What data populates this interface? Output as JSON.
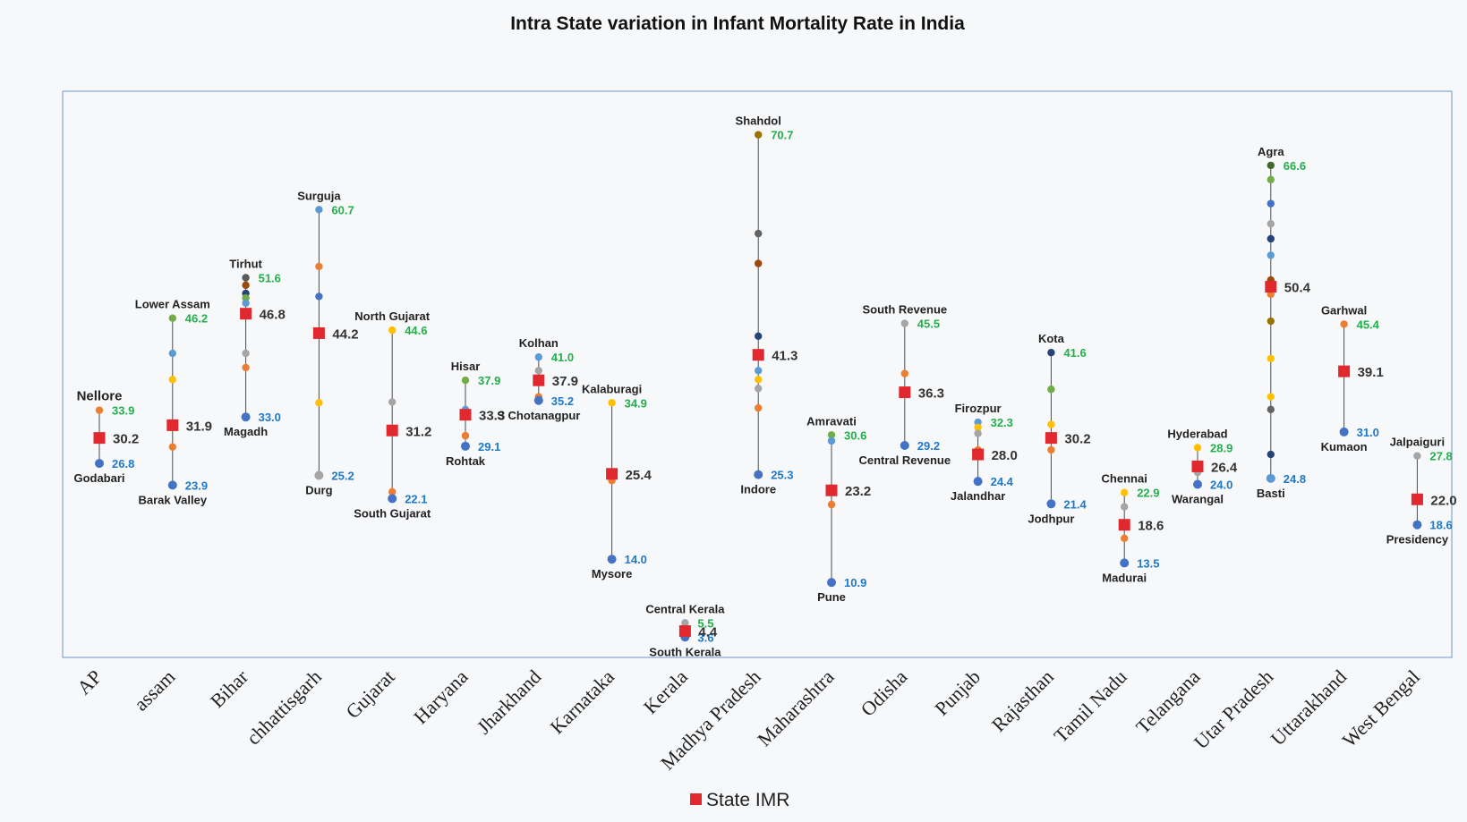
{
  "chart_data": {
    "type": "scatter",
    "title": "Intra State variation in Infant Mortality Rate in India",
    "legend": [
      {
        "name": "State IMR",
        "color": "#e2282f",
        "marker": "square",
        "placement": "bottom-center"
      }
    ],
    "ylim": [
      0,
      80
    ],
    "grid": false,
    "categories": [
      "AP",
      "assam",
      "Bihar",
      "chhattisgarh",
      "Gujarat",
      "Haryana",
      "Jharkhand",
      "Karnataka",
      "Kerala",
      "Madhya Pradesh",
      "Maharashtra",
      "Odisha",
      "Punjab",
      "Rajasthan",
      "Tamil Nadu",
      "Telangana",
      "Utar Pradesh",
      "Uttarakhand",
      "West Bengal"
    ],
    "states": [
      {
        "category": "AP",
        "state_imr": 30.2,
        "max": 33.9,
        "min": 26.8,
        "max_region": "Nellore",
        "min_region": "Godabari",
        "regions": [
          {
            "v": 33.9,
            "c": "#ed7d31"
          },
          {
            "v": 26.8,
            "c": "#4472c4"
          }
        ]
      },
      {
        "category": "assam",
        "state_imr": 31.9,
        "max": 46.2,
        "min": 23.9,
        "max_region": "Lower Assam",
        "min_region": "Barak Valley",
        "regions": [
          {
            "v": 46.2,
            "c": "#70ad47"
          },
          {
            "v": 41.5,
            "c": "#5b9bd5"
          },
          {
            "v": 38.0,
            "c": "#ffc000"
          },
          {
            "v": 29.0,
            "c": "#ed7d31"
          },
          {
            "v": 23.9,
            "c": "#4472c4"
          }
        ]
      },
      {
        "category": "Bihar",
        "state_imr": 46.8,
        "max": 51.6,
        "min": 33.0,
        "max_region": "Tirhut",
        "min_region": "Magadh",
        "regions": [
          {
            "v": 51.6,
            "c": "#5a5a5a"
          },
          {
            "v": 50.6,
            "c": "#9e480e"
          },
          {
            "v": 49.5,
            "c": "#264478"
          },
          {
            "v": 48.9,
            "c": "#70ad47"
          },
          {
            "v": 48.2,
            "c": "#5b9bd5"
          },
          {
            "v": 41.5,
            "c": "#a5a5a5"
          },
          {
            "v": 39.6,
            "c": "#ed7d31"
          },
          {
            "v": 33.0,
            "c": "#4472c4"
          }
        ]
      },
      {
        "category": "chhattisgarh",
        "state_imr": 44.2,
        "max": 60.7,
        "min": 25.2,
        "max_region": "Surguja",
        "min_region": "Durg",
        "regions": [
          {
            "v": 60.7,
            "c": "#5b9bd5"
          },
          {
            "v": 53.1,
            "c": "#ed7d31"
          },
          {
            "v": 49.1,
            "c": "#4472c4"
          },
          {
            "v": 34.9,
            "c": "#ffc000"
          },
          {
            "v": 25.2,
            "c": "#a5a5a5"
          }
        ]
      },
      {
        "category": "Gujarat",
        "state_imr": 31.2,
        "max": 44.6,
        "min": 22.1,
        "max_region": "North Gujarat",
        "min_region": "South Gujarat",
        "regions": [
          {
            "v": 44.6,
            "c": "#ffc000"
          },
          {
            "v": 35.0,
            "c": "#a5a5a5"
          },
          {
            "v": 23.0,
            "c": "#ed7d31"
          },
          {
            "v": 22.1,
            "c": "#4472c4"
          }
        ]
      },
      {
        "category": "Haryana",
        "state_imr": 33.3,
        "max": 37.9,
        "min": 29.1,
        "max_region": "Hisar",
        "min_region": "Rohtak",
        "regions": [
          {
            "v": 37.9,
            "c": "#70ad47"
          },
          {
            "v": 34.0,
            "c": "#5b9bd5"
          },
          {
            "v": 30.5,
            "c": "#ed7d31"
          },
          {
            "v": 29.1,
            "c": "#4472c4"
          }
        ]
      },
      {
        "category": "Jharkhand",
        "state_imr": 37.9,
        "max": 41.0,
        "min": 35.2,
        "max_region": "Kolhan",
        "min_region": "S Chotanagpur",
        "regions": [
          {
            "v": 41.0,
            "c": "#5b9bd5"
          },
          {
            "v": 39.2,
            "c": "#a5a5a5"
          },
          {
            "v": 35.7,
            "c": "#ed7d31"
          },
          {
            "v": 35.2,
            "c": "#4472c4"
          }
        ]
      },
      {
        "category": "Karnataka",
        "state_imr": 25.4,
        "max": 34.9,
        "min": 14.0,
        "max_region": "Kalaburagi",
        "min_region": "Mysore",
        "regions": [
          {
            "v": 34.9,
            "c": "#ffc000"
          },
          {
            "v": 24.5,
            "c": "#ed7d31"
          },
          {
            "v": 14.0,
            "c": "#4472c4"
          }
        ]
      },
      {
        "category": "Kerala",
        "state_imr": 4.4,
        "max": 5.5,
        "min": 3.6,
        "max_region": "Central Kerala",
        "min_region": "South Kerala",
        "regions": [
          {
            "v": 5.5,
            "c": "#a5a5a5"
          },
          {
            "v": 3.6,
            "c": "#4472c4"
          }
        ]
      },
      {
        "category": "Madhya Pradesh",
        "state_imr": 41.3,
        "max": 70.7,
        "min": 25.3,
        "max_region": "Shahdol",
        "min_region": "Indore",
        "regions": [
          {
            "v": 70.7,
            "c": "#997300"
          },
          {
            "v": 57.5,
            "c": "#636363"
          },
          {
            "v": 53.5,
            "c": "#9e480e"
          },
          {
            "v": 43.8,
            "c": "#264478"
          },
          {
            "v": 39.2,
            "c": "#5b9bd5"
          },
          {
            "v": 38.0,
            "c": "#ffc000"
          },
          {
            "v": 36.8,
            "c": "#a5a5a5"
          },
          {
            "v": 34.2,
            "c": "#ed7d31"
          },
          {
            "v": 25.3,
            "c": "#4472c4"
          }
        ]
      },
      {
        "category": "Maharashtra",
        "state_imr": 23.2,
        "max": 30.6,
        "min": 10.9,
        "max_region": "Amravati",
        "min_region": "Pune",
        "regions": [
          {
            "v": 30.6,
            "c": "#70ad47"
          },
          {
            "v": 29.8,
            "c": "#5b9bd5"
          },
          {
            "v": 21.3,
            "c": "#ed7d31"
          },
          {
            "v": 10.9,
            "c": "#4472c4"
          }
        ]
      },
      {
        "category": "Odisha",
        "state_imr": 36.3,
        "max": 45.5,
        "min": 29.2,
        "max_region": "South Revenue",
        "min_region": "Central Revenue",
        "regions": [
          {
            "v": 45.5,
            "c": "#a5a5a5"
          },
          {
            "v": 38.8,
            "c": "#ed7d31"
          },
          {
            "v": 29.2,
            "c": "#4472c4"
          }
        ]
      },
      {
        "category": "Punjab",
        "state_imr": 28.0,
        "max": 32.3,
        "min": 24.4,
        "max_region": "Firozpur",
        "min_region": "Jalandhar",
        "regions": [
          {
            "v": 32.3,
            "c": "#5b9bd5"
          },
          {
            "v": 31.6,
            "c": "#ffc000"
          },
          {
            "v": 30.8,
            "c": "#a5a5a5"
          },
          {
            "v": 28.6,
            "c": "#ed7d31"
          },
          {
            "v": 24.4,
            "c": "#4472c4"
          }
        ]
      },
      {
        "category": "Rajasthan",
        "state_imr": 30.2,
        "max": 41.6,
        "min": 21.4,
        "max_region": "Kota",
        "min_region": "Jodhpur",
        "regions": [
          {
            "v": 41.6,
            "c": "#264478"
          },
          {
            "v": 36.7,
            "c": "#70ad47"
          },
          {
            "v": 32.0,
            "c": "#ffc000"
          },
          {
            "v": 28.6,
            "c": "#ed7d31"
          },
          {
            "v": 21.4,
            "c": "#4472c4"
          }
        ]
      },
      {
        "category": "Tamil Nadu",
        "state_imr": 18.6,
        "max": 22.9,
        "min": 13.5,
        "max_region": "Chennai",
        "min_region": "Madurai",
        "regions": [
          {
            "v": 22.9,
            "c": "#ffc000"
          },
          {
            "v": 21.0,
            "c": "#a5a5a5"
          },
          {
            "v": 16.8,
            "c": "#ed7d31"
          },
          {
            "v": 13.5,
            "c": "#4472c4"
          }
        ]
      },
      {
        "category": "Telangana",
        "state_imr": 26.4,
        "max": 28.9,
        "min": 24.0,
        "max_region": "Hyderabad",
        "min_region": "Warangal",
        "regions": [
          {
            "v": 28.9,
            "c": "#ffc000"
          },
          {
            "v": 25.6,
            "c": "#a5a5a5"
          },
          {
            "v": 24.0,
            "c": "#4472c4"
          }
        ]
      },
      {
        "category": "Utar Pradesh",
        "state_imr": 50.4,
        "max": 66.6,
        "min": 24.8,
        "max_region": "Agra",
        "min_region": "Basti",
        "regions": [
          {
            "v": 66.6,
            "c": "#43682b"
          },
          {
            "v": 64.7,
            "c": "#70ad47"
          },
          {
            "v": 61.5,
            "c": "#4472c4"
          },
          {
            "v": 58.8,
            "c": "#a5a5a5"
          },
          {
            "v": 56.8,
            "c": "#264478"
          },
          {
            "v": 54.6,
            "c": "#5b9bd5"
          },
          {
            "v": 51.3,
            "c": "#9e480e"
          },
          {
            "v": 49.4,
            "c": "#ed7d31"
          },
          {
            "v": 45.8,
            "c": "#997300"
          },
          {
            "v": 40.8,
            "c": "#ffc000"
          },
          {
            "v": 35.7,
            "c": "#ffc000"
          },
          {
            "v": 34.0,
            "c": "#636363"
          },
          {
            "v": 28.0,
            "c": "#264478"
          },
          {
            "v": 24.8,
            "c": "#5b9bd5"
          }
        ]
      },
      {
        "category": "Uttarakhand",
        "state_imr": 39.1,
        "max": 45.4,
        "min": 31.0,
        "max_region": "Garhwal",
        "min_region": "Kumaon",
        "regions": [
          {
            "v": 45.4,
            "c": "#ed7d31"
          },
          {
            "v": 31.0,
            "c": "#4472c4"
          }
        ]
      },
      {
        "category": "West Bengal",
        "state_imr": 22.0,
        "max": 27.8,
        "min": 18.6,
        "max_region": "Jalpaiguri",
        "min_region": "Presidency",
        "regions": [
          {
            "v": 27.8,
            "c": "#a5a5a5"
          },
          {
            "v": 18.6,
            "c": "#4472c4"
          }
        ]
      }
    ]
  },
  "colors": {
    "state_marker": "#e2282f",
    "max_label": "#22b04b",
    "min_label": "#1f78c8",
    "frame": "#6f95cf"
  }
}
